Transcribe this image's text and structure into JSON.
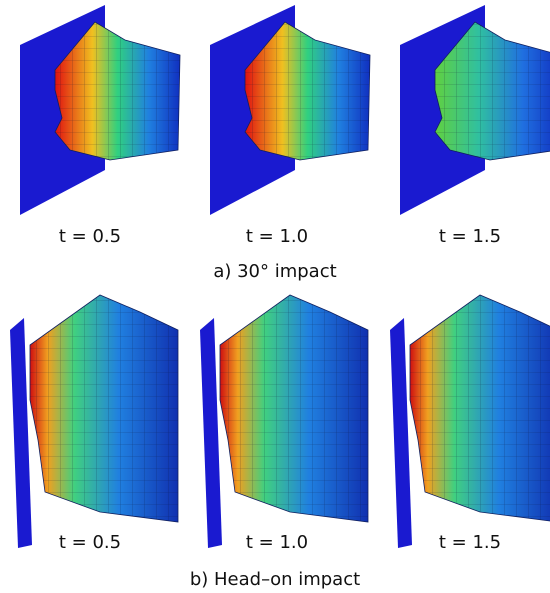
{
  "panels": [
    {
      "caption": "a) 30° impact",
      "labels": [
        "t = 0.5",
        "t = 1.0",
        "t = 1.5"
      ]
    },
    {
      "caption": "b) Head–on impact",
      "labels": [
        "t = 0.5",
        "t = 1.0",
        "t = 1.5"
      ]
    }
  ]
}
